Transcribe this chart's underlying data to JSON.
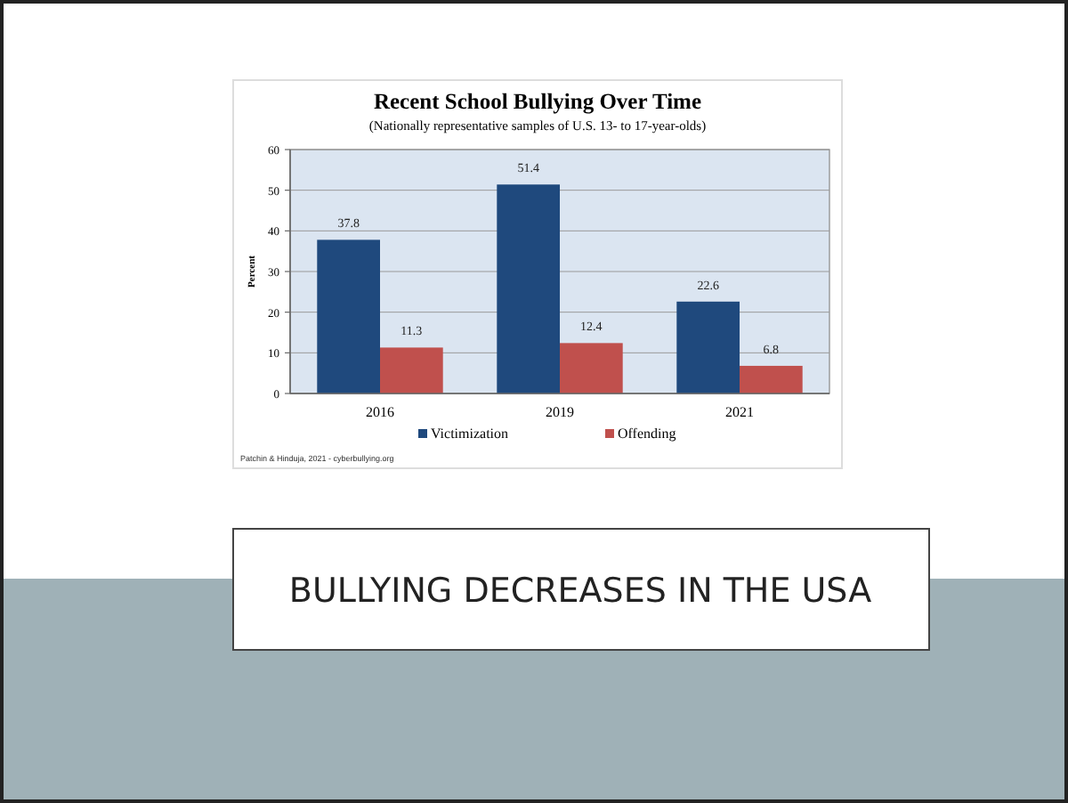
{
  "chart_data": {
    "type": "bar",
    "title": "Recent School Bullying Over Time",
    "subtitle": "(Nationally representative samples of U.S. 13- to 17-year-olds)",
    "ylabel": "Percent",
    "categories": [
      "2016",
      "2019",
      "2021"
    ],
    "series": [
      {
        "name": "Victimization",
        "color": "#1f497d",
        "values": [
          37.8,
          51.4,
          22.6
        ]
      },
      {
        "name": "Offending",
        "color": "#c0504d",
        "values": [
          11.3,
          12.4,
          6.8
        ]
      }
    ],
    "ylim": [
      0,
      60
    ],
    "yticks": [
      0,
      10,
      20,
      30,
      40,
      50,
      60
    ],
    "grid": "y",
    "legend": "bottom",
    "data_labels": true,
    "annotations": [
      "Patchin & Hinduja, 2021 - cyberbullying.org",
      "BULLYING DECREASES IN THE USA"
    ]
  }
}
